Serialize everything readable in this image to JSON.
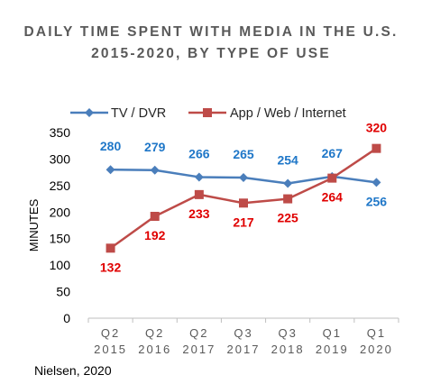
{
  "chart_data": {
    "type": "line",
    "title": "DAILY TIME SPENT WITH MEDIA IN THE U.S. 2015-2020, BY TYPE OF USE",
    "ylabel": "MINUTES",
    "xlabel": "",
    "ylim": [
      0,
      350
    ],
    "yticks": [
      0,
      50,
      100,
      150,
      200,
      250,
      300,
      350
    ],
    "grid": false,
    "legend_position": "top",
    "categories": [
      {
        "quarter": "Q2",
        "year": "2015"
      },
      {
        "quarter": "Q2",
        "year": "2016"
      },
      {
        "quarter": "Q2",
        "year": "2017"
      },
      {
        "quarter": "Q3",
        "year": "2017"
      },
      {
        "quarter": "Q3",
        "year": "2018"
      },
      {
        "quarter": "Q1",
        "year": "2019"
      },
      {
        "quarter": "Q1",
        "year": "2020"
      }
    ],
    "series": [
      {
        "name": "TV / DVR",
        "color": "#4A7EBB",
        "label_color": "#1F77C8",
        "marker": "diamond",
        "values": [
          280,
          279,
          266,
          265,
          254,
          267,
          256
        ]
      },
      {
        "name": "App / Web / Internet",
        "color": "#BE4B48",
        "label_color": "#E00000",
        "marker": "square",
        "values": [
          132,
          192,
          233,
          217,
          225,
          264,
          320
        ]
      }
    ]
  },
  "source": "Nielsen, 2020"
}
